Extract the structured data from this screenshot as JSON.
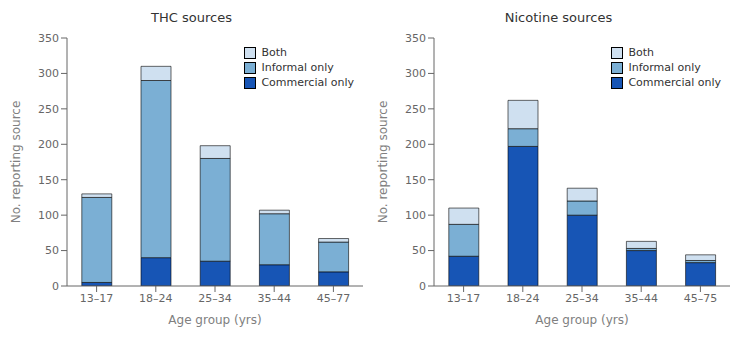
{
  "chart_data": [
    {
      "type": "bar",
      "title": "THC sources",
      "stacked": true,
      "grid": false,
      "legend": "upper right",
      "xlabel": "Age group (yrs)",
      "ylabel": "No. reporting source",
      "categories": [
        "13–17",
        "18–24",
        "25–34",
        "35–44",
        "45–77"
      ],
      "series": [
        {
          "name": "Commercial only",
          "color": "#1755b5",
          "values": [
            5,
            40,
            35,
            30,
            20
          ]
        },
        {
          "name": "Informal only",
          "color": "#7bafd4",
          "values": [
            120,
            250,
            145,
            72,
            42
          ]
        },
        {
          "name": "Both",
          "color": "#cfe0f0",
          "values": [
            5,
            20,
            18,
            5,
            5
          ]
        }
      ],
      "ylim": [
        0,
        350
      ],
      "yticks": [
        0,
        50,
        100,
        150,
        200,
        250,
        300,
        350
      ]
    },
    {
      "type": "bar",
      "title": "Nicotine sources",
      "stacked": true,
      "grid": false,
      "legend": "upper right",
      "xlabel": "Age group (yrs)",
      "ylabel": "No. reporting source",
      "categories": [
        "13–17",
        "18–24",
        "25–34",
        "35–44",
        "45–75"
      ],
      "series": [
        {
          "name": "Commercial only",
          "color": "#1755b5",
          "values": [
            42,
            197,
            100,
            50,
            33
          ]
        },
        {
          "name": "Informal only",
          "color": "#7bafd4",
          "values": [
            45,
            25,
            20,
            3,
            3
          ]
        },
        {
          "name": "Both",
          "color": "#cfe0f0",
          "values": [
            23,
            40,
            18,
            10,
            8
          ]
        }
      ],
      "ylim": [
        0,
        350
      ],
      "yticks": [
        0,
        50,
        100,
        150,
        200,
        250,
        300,
        350
      ]
    }
  ]
}
